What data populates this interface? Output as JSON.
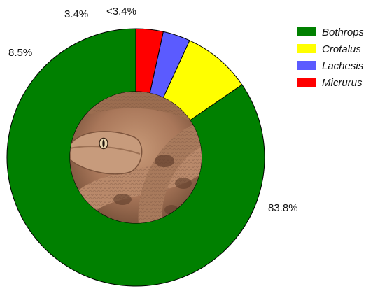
{
  "chart_data": {
    "type": "pie",
    "variant": "donut",
    "title": "",
    "categories": [
      "Bothrops",
      "Crotalus",
      "Lachesis",
      "Micrurus"
    ],
    "values": [
      83.8,
      8.5,
      3.4,
      3.4
    ],
    "data_labels": [
      "83.8%",
      "8.5%",
      "3.4%",
      "<3.4%"
    ],
    "colors": [
      "#008000",
      "#ffff00",
      "#5b5bff",
      "#ff0000"
    ],
    "legend": {
      "placement": "top-right",
      "entries": [
        "Bothrops",
        "Crotalus",
        "Lachesis",
        "Micrurus"
      ]
    },
    "center_image": "snake-photo"
  }
}
